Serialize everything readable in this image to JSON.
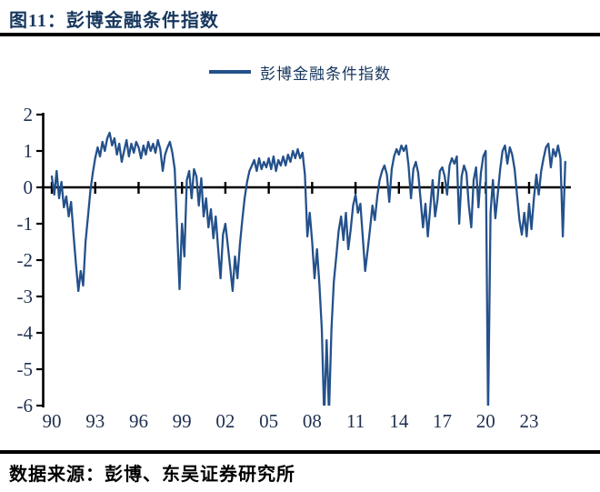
{
  "figure": {
    "title": "图11：彭博金融条件指数",
    "source": "数据来源：彭博、东吴证券研究所"
  },
  "legend": {
    "label": "彭博金融条件指数"
  },
  "colors": {
    "line": "#24518B",
    "title_text": "#17375E",
    "tick_label": "#1F3050",
    "axis": "#000000",
    "rule": "#000000",
    "background": "#FFFFFF"
  },
  "chart_data": {
    "type": "line",
    "title": "彭博金融条件指数",
    "xlabel": "",
    "ylabel": "",
    "grid": false,
    "legend_position": "top-center",
    "ylim": [
      -6,
      2
    ],
    "y_ticks": [
      2,
      1,
      0,
      -1,
      -2,
      -3,
      -4,
      -5,
      -6
    ],
    "x_tick_years": [
      1990,
      1993,
      1996,
      1999,
      2002,
      2005,
      2008,
      2011,
      2014,
      2017,
      2020,
      2023
    ],
    "x_tick_labels": [
      "90",
      "93",
      "96",
      "99",
      "02",
      "05",
      "08",
      "11",
      "14",
      "17",
      "20",
      "23"
    ],
    "zero_axis": true,
    "clip_below": -6,
    "series": [
      {
        "name": "彭博金融条件指数",
        "start_year": 1990.0,
        "end_year": 2025.5,
        "step_years": 0.166667,
        "values": [
          0.3,
          -0.2,
          0.45,
          -0.3,
          0.15,
          -0.55,
          -0.25,
          -0.8,
          -0.4,
          -1.3,
          -2.1,
          -2.85,
          -2.3,
          -2.7,
          -1.5,
          -0.8,
          -0.1,
          0.4,
          0.8,
          1.1,
          0.85,
          1.25,
          1.0,
          1.35,
          1.5,
          1.15,
          1.35,
          0.9,
          1.2,
          0.7,
          1.0,
          1.3,
          0.85,
          1.2,
          0.95,
          1.25,
          1.1,
          0.8,
          1.15,
          0.9,
          1.25,
          1.0,
          1.2,
          0.95,
          1.3,
          1.05,
          0.45,
          0.9,
          1.1,
          1.25,
          0.95,
          0.5,
          -1.2,
          -2.8,
          -1.0,
          -1.9,
          0.2,
          0.45,
          -0.3,
          0.5,
          0.3,
          -0.5,
          0.25,
          -0.8,
          -0.3,
          -1.1,
          -0.6,
          -1.4,
          -0.8,
          -1.7,
          -2.5,
          -1.3,
          -1.0,
          -1.6,
          -2.2,
          -2.85,
          -1.9,
          -2.5,
          -1.6,
          -0.9,
          -0.3,
          0.15,
          0.45,
          0.6,
          0.75,
          0.45,
          0.8,
          0.5,
          0.7,
          0.55,
          0.8,
          0.5,
          0.85,
          0.45,
          0.75,
          0.6,
          0.85,
          0.6,
          0.9,
          0.7,
          1.0,
          0.8,
          1.05,
          0.8,
          0.95,
          0.35,
          -1.35,
          -0.7,
          -1.5,
          -2.5,
          -1.7,
          -2.65,
          -3.9,
          -6.3,
          -4.2,
          -6.2,
          -3.9,
          -2.6,
          -1.9,
          -1.2,
          -0.8,
          -1.45,
          -0.7,
          -1.7,
          -1.15,
          -0.5,
          -0.2,
          -0.7,
          -0.45,
          -1.35,
          -2.3,
          -1.75,
          -1.15,
          -0.5,
          -0.9,
          -0.25,
          0.2,
          0.45,
          0.6,
          0.35,
          -0.4,
          0.5,
          0.85,
          1.05,
          0.9,
          1.15,
          1.0,
          1.15,
          0.6,
          -0.3,
          0.5,
          0.7,
          0.4,
          -0.35,
          -1.1,
          -0.45,
          -1.35,
          -0.55,
          0.2,
          -0.8,
          -0.35,
          0.45,
          0.55,
          0.3,
          -0.2,
          0.6,
          0.8,
          0.65,
          0.85,
          -1.0,
          0.3,
          0.6,
          0.4,
          -0.5,
          -1.1,
          0.2,
          0.55,
          -0.55,
          0.4,
          0.85,
          1.0,
          -6.3,
          -0.7,
          0.2,
          -0.85,
          -0.2,
          0.5,
          1.0,
          1.15,
          0.65,
          1.1,
          0.9,
          0.5,
          -0.2,
          -0.9,
          -1.3,
          -0.7,
          -1.35,
          -0.45,
          -1.15,
          -0.3,
          0.35,
          -0.2,
          0.45,
          0.8,
          1.1,
          1.2,
          0.55,
          1.05,
          0.85,
          1.15,
          0.8,
          -1.35,
          0.7
        ]
      }
    ]
  }
}
